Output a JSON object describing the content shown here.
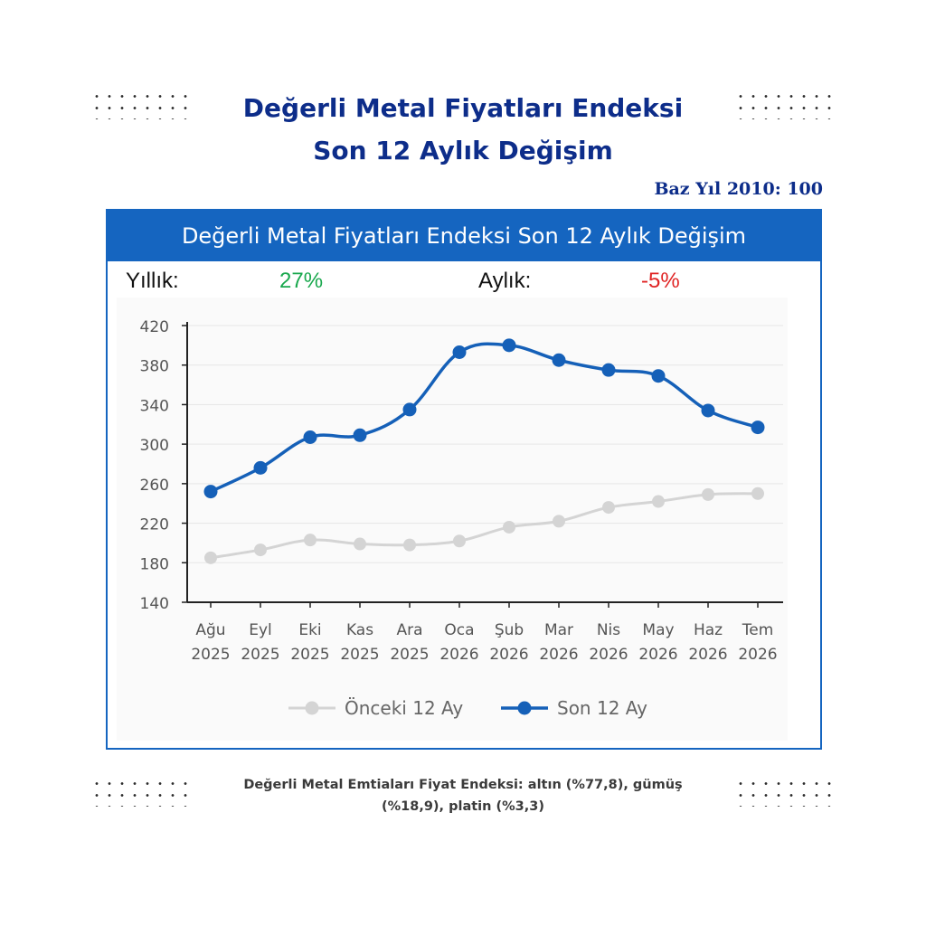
{
  "header": {
    "title_line1": "Değerli Metal Fiyatları Endeksi",
    "title_line2": "Son 12 Aylık Değişim",
    "base_year": "Baz Yıl 2010: 100"
  },
  "chart_panel": {
    "title": "Değerli Metal Fiyatları Endeksi Son 12 Aylık Değişim",
    "annual_label": "Yıllık:",
    "annual_value": "27%",
    "monthly_label": "Aylık:",
    "monthly_value": "-5%"
  },
  "chart_data": {
    "type": "line",
    "title": "Değerli Metal Fiyatları Endeksi Son 12 Aylık Değişim",
    "xlabel": "",
    "ylabel": "",
    "categories": [
      "Ağu 2025",
      "Eyl 2025",
      "Eki 2025",
      "Kas 2025",
      "Ara 2025",
      "Oca 2026",
      "Şub 2026",
      "Mar 2026",
      "Nis 2026",
      "May 2026",
      "Haz 2026",
      "Tem 2026"
    ],
    "ylim": [
      140,
      420
    ],
    "yticks": [
      140,
      180,
      220,
      260,
      300,
      340,
      380,
      420
    ],
    "grid": true,
    "legend_position": "bottom",
    "series": [
      {
        "name": "Önceki 12 Ay",
        "color": "#d4d4d4",
        "values": [
          185,
          193,
          203,
          199,
          198,
          202,
          216,
          222,
          236,
          242,
          249,
          250
        ]
      },
      {
        "name": "Son 12 Ay",
        "color": "#1560b8",
        "values": [
          252,
          276,
          307,
          309,
          335,
          393,
          400,
          385,
          375,
          369,
          334,
          317
        ]
      }
    ]
  },
  "footnote": {
    "line1": "Değerli Metal Emtiaları Fiyat Endeksi: altın (%77,8), gümüş",
    "line2": "(%18,9), platin (%3,3)"
  },
  "colors": {
    "title_navy": "#0d2d8a",
    "panel_blue": "#1565c0",
    "positive_green": "#19a84d",
    "negative_red": "#e02424"
  }
}
